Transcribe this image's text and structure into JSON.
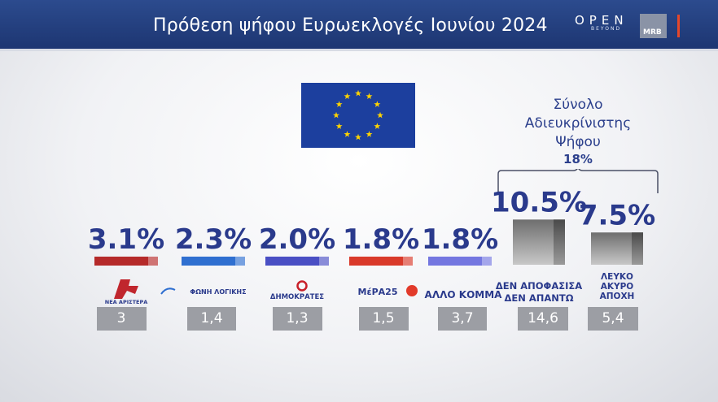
{
  "header": {
    "title": "Πρόθεση ψήφου Ευρωεκλογές Ιουνίου 2024",
    "open_logo": "OPEN",
    "open_sub": "BEYOND",
    "mrb_logo": "MRB"
  },
  "summary": {
    "line1": "Σύνολο",
    "line2": "Αδιευκρίνιστης",
    "line3": "Ψήφου",
    "value": "18%"
  },
  "colors": {
    "header_bg": "#2c4b8e",
    "percent_text": "#2a3a8c",
    "summary_text": "#2b3f8c",
    "seats_box": "#9c9ea4",
    "eu_blue": "#1c3f9e",
    "eu_star": "#ffd400"
  },
  "chart_data": {
    "type": "bar",
    "categories": [
      "ΝΕΑ ΑΡΙΣΤΕΡΑ",
      "ΦΩΝΗ ΛΟΓΙΚΗΣ",
      "ΔΗΜΟΚΡΑΤΕΣ",
      "ΜέΡΑ25",
      "ΑΛΛΟ ΚΟΜΜΑ",
      "ΔΕΝ ΑΠΟΦΑΣΙΣΑ ΔΕΝ ΑΠΑΝΤΩ",
      "ΛΕΥΚΟ ΑΚΥΡΟ ΑΠΟΧΗ"
    ],
    "values": [
      3.1,
      2.3,
      2.0,
      1.8,
      1.8,
      10.5,
      7.5
    ],
    "value_labels": [
      "3.1%",
      "2.3%",
      "2.0%",
      "1.8%",
      "1.8%",
      "10.5%",
      "7.5%"
    ],
    "bar_colors": [
      "#b52a2a",
      "#2f6fd0",
      "#4a4fc4",
      "#d93a2a",
      "#7477e0",
      "#8c8c8c",
      "#8c8c8c"
    ],
    "secondary_values": [
      "3",
      "1,4",
      "1,3",
      "1,5",
      "3,7",
      "14,6",
      "5,4"
    ],
    "title": "Πρόθεση ψήφου Ευρωεκλογές Ιουνίου 2024",
    "xlabel": "",
    "ylabel": "",
    "grid": false,
    "legend": "none"
  },
  "party_labels": [
    {
      "text": "ΝΕΑ ΑΡΙΣΤΕΡΑ"
    },
    {
      "text": "ΦΩΝΗ ΛΟΓΙΚΗΣ"
    },
    {
      "text": "ΔΗΜΟΚΡΑΤΕΣ"
    },
    {
      "text": "ΜέΡΑ25"
    },
    {
      "text": "ΑΛΛΟ ΚΟΜΜΑ"
    },
    {
      "line1": "ΔΕΝ ΑΠΟΦΑΣΙΣΑ",
      "line2": "ΔΕΝ ΑΠΑΝΤΩ"
    },
    {
      "line1": "ΛΕΥΚΟ",
      "line2": "ΑΚΥΡΟ",
      "line3": "ΑΠΟΧΗ"
    }
  ]
}
